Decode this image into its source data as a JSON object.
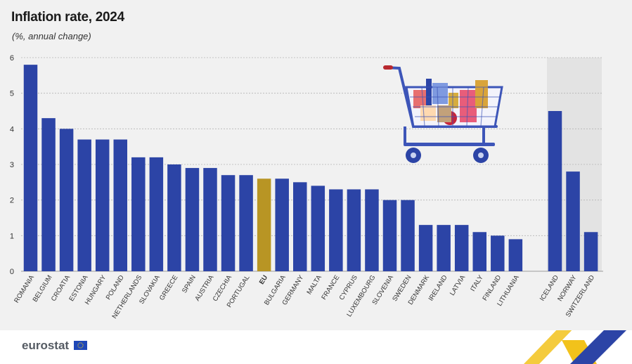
{
  "header": {
    "title": "Inflation rate, 2024",
    "subtitle": "(%, annual change)"
  },
  "footer": {
    "logo_text": "eurostat"
  },
  "colors": {
    "bar": "#2c44a6",
    "highlight": "#b89524",
    "efta_band": "#e3e3e3",
    "grid": "#b5b5b5",
    "background": "#f1f1f1"
  },
  "chart_data": {
    "type": "bar",
    "title": "Inflation rate, 2024",
    "subtitle": "(%, annual change)",
    "xlabel": "",
    "ylabel": "",
    "ylim": [
      0,
      6
    ],
    "yticks": [
      0,
      1,
      2,
      3,
      4,
      5,
      6
    ],
    "grid": true,
    "highlight_category": "EU",
    "groups": [
      {
        "group": "main",
        "categories": [
          "ROMANIA",
          "BELGIUM",
          "CROATIA",
          "ESTONIA",
          "HUNGARY",
          "POLAND",
          "NETHERLANDS",
          "SLOVAKIA",
          "GREECE",
          "SPAIN",
          "AUSTRIA",
          "CZECHIA",
          "PORTUGAL",
          "EU",
          "BULGARIA",
          "GERMANY",
          "MALTA",
          "FRANCE",
          "CYPRUS",
          "LUXEMBOURG",
          "SLOVENIA",
          "SWEDEN",
          "DENMARK",
          "IRELAND",
          "LATVIA",
          "ITALY",
          "FINLAND",
          "LITHUANIA"
        ],
        "values": [
          5.8,
          4.3,
          4.0,
          3.7,
          3.7,
          3.7,
          3.2,
          3.2,
          3.0,
          2.9,
          2.9,
          2.7,
          2.7,
          2.6,
          2.6,
          2.5,
          2.4,
          2.3,
          2.3,
          2.3,
          2.0,
          2.0,
          1.3,
          1.3,
          1.3,
          1.1,
          1.0,
          0.9
        ]
      },
      {
        "group": "shaded",
        "categories": [
          "ICELAND",
          "NORWAY",
          "SWITZERLAND"
        ],
        "values": [
          4.5,
          2.8,
          1.1
        ]
      }
    ]
  }
}
